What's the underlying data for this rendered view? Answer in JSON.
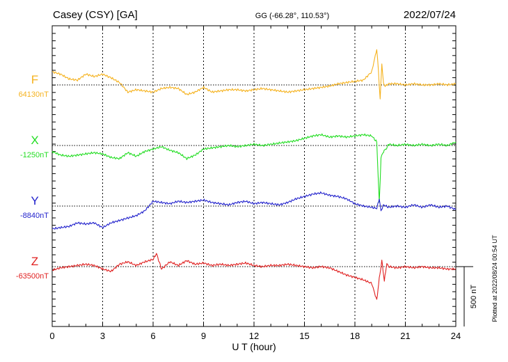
{
  "header": {
    "station": "Casey (CSY)  [GA]",
    "coords": "GG (-66.28°, 110.53°)",
    "date": "2022/07/24"
  },
  "footer": {
    "plotted": "Plotted at 2022/08/24 00:54 UT"
  },
  "chart_data": {
    "type": "line",
    "xlabel": "U T (hour)",
    "xlim": [
      0,
      24
    ],
    "x_ticks": [
      0,
      3,
      6,
      9,
      12,
      15,
      18,
      21,
      24
    ],
    "x_tick_labels": [
      "0",
      "3",
      "6",
      "9",
      "12",
      "15",
      "18",
      "21",
      "24"
    ],
    "scale_bar": {
      "label": "500 nT",
      "value_nT": 500
    },
    "grid": "dotted vertical every 3 hours",
    "series": [
      {
        "name": "F",
        "baseline_label": "64130nT",
        "baseline_nT": 64130,
        "color": "#f5b21e",
        "x": [
          0,
          0.5,
          1,
          1.5,
          2,
          2.5,
          3,
          3.5,
          4,
          4.5,
          5,
          5.5,
          6,
          6.5,
          7,
          7.5,
          8,
          8.5,
          9,
          9.5,
          10,
          10.5,
          11,
          11.5,
          12,
          12.5,
          13,
          13.5,
          14,
          14.5,
          15,
          15.5,
          16,
          16.5,
          17,
          17.5,
          18,
          18.5,
          19,
          19.3,
          19.4,
          19.5,
          19.6,
          19.7,
          19.8,
          20,
          20.5,
          21,
          21.5,
          22,
          22.5,
          23,
          23.5,
          24
        ],
        "y": [
          110,
          90,
          50,
          40,
          90,
          70,
          90,
          60,
          20,
          -60,
          -40,
          -50,
          -60,
          -30,
          -20,
          -30,
          -80,
          -60,
          -20,
          -60,
          -50,
          -40,
          -40,
          -50,
          -40,
          -30,
          -40,
          -50,
          -60,
          -50,
          -40,
          -30,
          -20,
          -10,
          10,
          20,
          30,
          40,
          110,
          300,
          120,
          -120,
          180,
          10,
          -10,
          10,
          10,
          0,
          10,
          0,
          0,
          10,
          0,
          10
        ]
      },
      {
        "name": "X",
        "baseline_label": "-1250nT",
        "baseline_nT": -1250,
        "color": "#22dd22",
        "x": [
          0,
          0.5,
          1,
          1.5,
          2,
          2.5,
          3,
          3.5,
          4,
          4.5,
          5,
          5.5,
          6,
          6.5,
          7,
          7.5,
          8,
          8.5,
          9,
          9.5,
          10,
          10.5,
          11,
          11.5,
          12,
          12.5,
          13,
          13.5,
          14,
          14.5,
          15,
          15.5,
          16,
          16.5,
          17,
          17.5,
          18,
          18.5,
          19,
          19.3,
          19.45,
          19.55,
          19.7,
          19.9,
          20,
          20.5,
          21,
          21.5,
          22,
          22.5,
          23,
          23.5,
          24
        ],
        "y": [
          -50,
          -80,
          -90,
          -80,
          -70,
          -60,
          -70,
          -100,
          -110,
          -60,
          -90,
          -50,
          -30,
          -10,
          -40,
          -60,
          -110,
          -80,
          -30,
          -20,
          -10,
          0,
          -10,
          0,
          10,
          0,
          10,
          20,
          30,
          40,
          60,
          80,
          90,
          70,
          80,
          70,
          80,
          90,
          80,
          30,
          -480,
          -100,
          -50,
          -20,
          10,
          0,
          10,
          0,
          10,
          0,
          10,
          0,
          30
        ]
      },
      {
        "name": "Y",
        "baseline_label": "-8840nT",
        "baseline_nT": -8840,
        "color": "#2222cc",
        "x": [
          0,
          0.5,
          1,
          1.5,
          2,
          2.5,
          3,
          3.5,
          4,
          4.5,
          5,
          5.5,
          6,
          6.5,
          7,
          7.5,
          8,
          8.5,
          9,
          9.5,
          10,
          10.5,
          11,
          11.5,
          12,
          12.5,
          13,
          13.5,
          14,
          14.5,
          15,
          15.5,
          16,
          16.5,
          17,
          17.5,
          18,
          18.5,
          19,
          19.3,
          19.45,
          19.55,
          19.7,
          20,
          20.5,
          21,
          21.5,
          22,
          22.5,
          23,
          23.5,
          24
        ],
        "y": [
          -190,
          -180,
          -170,
          -140,
          -150,
          -140,
          -180,
          -140,
          -120,
          -100,
          -80,
          -40,
          40,
          30,
          20,
          40,
          30,
          40,
          50,
          30,
          20,
          10,
          30,
          40,
          20,
          30,
          20,
          10,
          30,
          60,
          80,
          100,
          110,
          90,
          80,
          60,
          20,
          0,
          -10,
          -20,
          60,
          -40,
          10,
          -10,
          0,
          -10,
          10,
          -10,
          10,
          -10,
          0,
          -30
        ]
      },
      {
        "name": "Z",
        "baseline_label": "-63500nT",
        "baseline_nT": -63500,
        "color": "#e02020",
        "x": [
          0,
          0.5,
          1,
          1.5,
          2,
          2.5,
          3,
          3.5,
          4,
          4.5,
          5,
          5.5,
          6,
          6.2,
          6.5,
          7,
          7.5,
          8,
          8.5,
          9,
          9.5,
          10,
          10.5,
          11,
          11.5,
          12,
          12.5,
          13,
          13.5,
          14,
          14.5,
          15,
          15.5,
          16,
          16.5,
          17,
          17.5,
          18,
          18.5,
          19,
          19.3,
          19.45,
          19.6,
          19.75,
          19.9,
          20,
          20.5,
          21,
          21.5,
          22,
          22.5,
          23,
          23.5,
          24
        ],
        "y": [
          -30,
          -10,
          0,
          10,
          20,
          10,
          -20,
          -40,
          20,
          40,
          10,
          40,
          60,
          110,
          -20,
          40,
          10,
          50,
          20,
          30,
          10,
          20,
          10,
          20,
          30,
          10,
          0,
          10,
          10,
          20,
          10,
          0,
          -10,
          0,
          -10,
          -40,
          -70,
          -90,
          -110,
          -140,
          -280,
          -100,
          50,
          -120,
          30,
          0,
          -10,
          0,
          -10,
          0,
          -10,
          -10,
          -20,
          -20
        ]
      }
    ]
  }
}
